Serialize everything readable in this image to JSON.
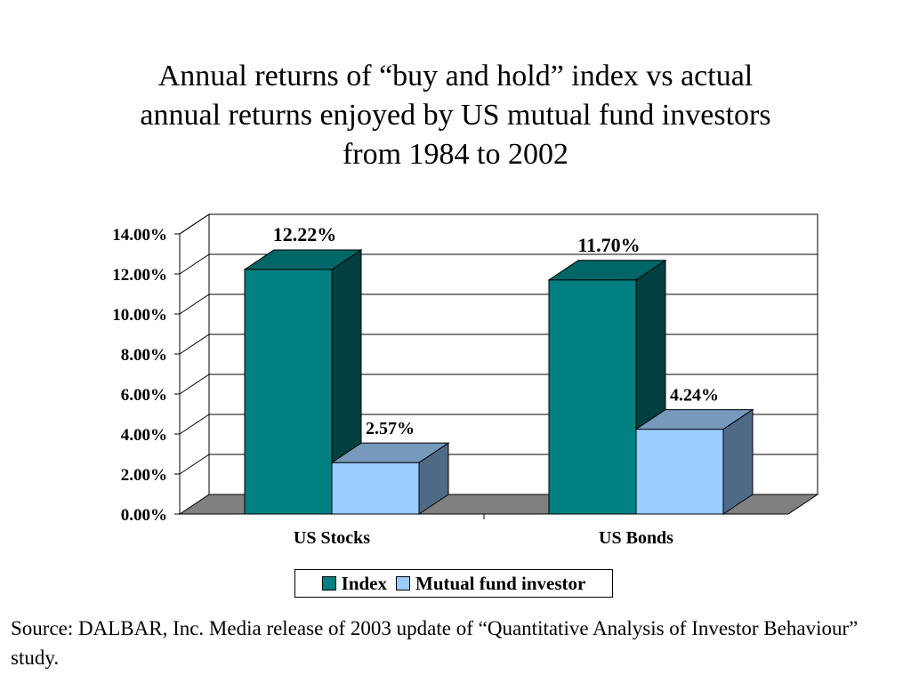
{
  "title_lines": [
    "Annual returns of “buy and hold” index vs actual",
    "annual returns enjoyed by US mutual fund investors",
    "from 1984 to 2002"
  ],
  "source": "Source: DALBAR, Inc. Media release of 2003 update of “Quantitative Analysis of Investor Behaviour” study.",
  "chart_data": {
    "type": "bar",
    "title": "Annual returns of “buy and hold” index vs actual annual returns enjoyed by US mutual fund investors from 1984 to 2002",
    "categories": [
      "US Stocks",
      "US Bonds"
    ],
    "series": [
      {
        "name": "Index",
        "values": [
          12.22,
          11.7
        ],
        "labels": [
          "12.22%",
          "11.70%"
        ],
        "color": "#008080",
        "side": "#004040",
        "top": "#006666"
      },
      {
        "name": "Mutual fund investor",
        "values": [
          2.57,
          4.24
        ],
        "labels": [
          "2.57%",
          "4.24%"
        ],
        "color": "#99CCFF",
        "side": "#4F6A87",
        "top": "#7799BB"
      }
    ],
    "ylim": [
      0,
      14
    ],
    "yticks": [
      "0.00%",
      "2.00%",
      "4.00%",
      "6.00%",
      "8.00%",
      "10.00%",
      "12.00%",
      "14.00%"
    ],
    "grid": true,
    "legend": "bottom",
    "floor_color": "#808080"
  }
}
